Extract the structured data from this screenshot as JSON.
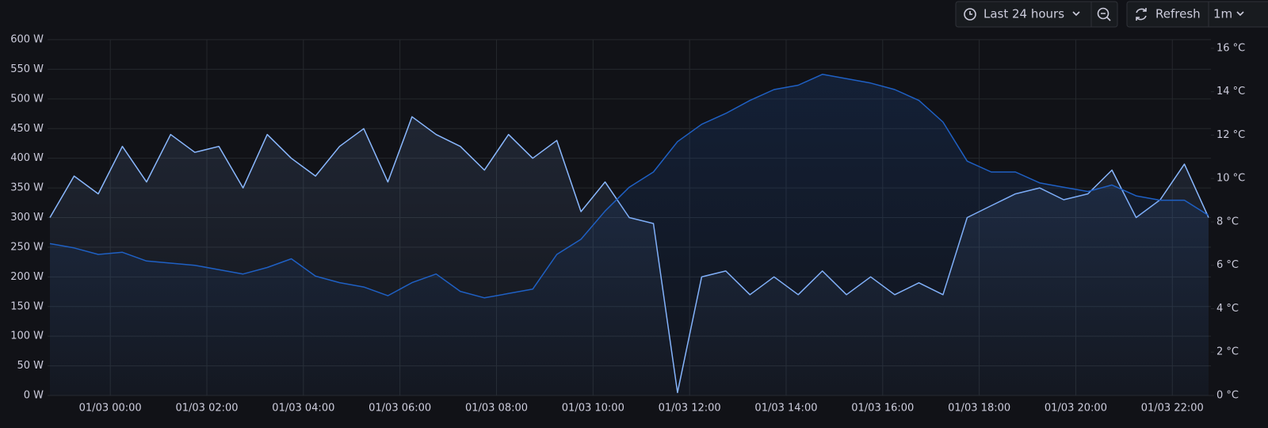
{
  "toolbar": {
    "time_range": "Last 24 hours",
    "refresh": "Refresh",
    "interval": "1m"
  },
  "chart_data": {
    "type": "line",
    "grid": true,
    "fill_area": true,
    "x": [
      -1.25,
      -0.75,
      -0.25,
      0.25,
      0.75,
      1.25,
      1.75,
      2.25,
      2.75,
      3.25,
      3.75,
      4.25,
      4.75,
      5.25,
      5.75,
      6.25,
      6.75,
      7.25,
      7.75,
      8.25,
      8.75,
      9.25,
      9.75,
      10.25,
      10.75,
      11.25,
      11.75,
      12.25,
      12.75,
      13.25,
      13.75,
      14.25,
      14.75,
      15.25,
      15.75,
      16.25,
      16.75,
      17.25,
      17.75,
      18.25,
      18.75,
      19.25,
      19.75,
      20.25,
      20.75,
      21.25,
      21.75,
      22.25,
      22.75
    ],
    "xlim": [
      -1.3,
      22.8
    ],
    "xticks": [
      {
        "value": 0,
        "label": "01/03 00:00"
      },
      {
        "value": 2,
        "label": "01/03 02:00"
      },
      {
        "value": 4,
        "label": "01/03 04:00"
      },
      {
        "value": 6,
        "label": "01/03 06:00"
      },
      {
        "value": 8,
        "label": "01/03 08:00"
      },
      {
        "value": 10,
        "label": "01/03 10:00"
      },
      {
        "value": 12,
        "label": "01/03 12:00"
      },
      {
        "value": 14,
        "label": "01/03 14:00"
      },
      {
        "value": 16,
        "label": "01/03 16:00"
      },
      {
        "value": 18,
        "label": "01/03 18:00"
      },
      {
        "value": 20,
        "label": "01/03 20:00"
      },
      {
        "value": 22,
        "label": "01/03 22:00"
      }
    ],
    "ylim": [
      0,
      600
    ],
    "yticks": [
      {
        "value": 0,
        "label": "0 W"
      },
      {
        "value": 50,
        "label": "50 W"
      },
      {
        "value": 100,
        "label": "100 W"
      },
      {
        "value": 150,
        "label": "150 W"
      },
      {
        "value": 200,
        "label": "200 W"
      },
      {
        "value": 250,
        "label": "250 W"
      },
      {
        "value": 300,
        "label": "300 W"
      },
      {
        "value": 350,
        "label": "350 W"
      },
      {
        "value": 400,
        "label": "400 W"
      },
      {
        "value": 450,
        "label": "450 W"
      },
      {
        "value": 500,
        "label": "500 W"
      },
      {
        "value": 550,
        "label": "550 W"
      },
      {
        "value": 600,
        "label": "600 W"
      }
    ],
    "y2lim": [
      0,
      16.4
    ],
    "y2ticks": [
      {
        "value": 0,
        "label": "0 °C"
      },
      {
        "value": 2,
        "label": "2 °C"
      },
      {
        "value": 4,
        "label": "4 °C"
      },
      {
        "value": 6,
        "label": "6 °C"
      },
      {
        "value": 8,
        "label": "8 °C"
      },
      {
        "value": 10,
        "label": "10 °C"
      },
      {
        "value": 12,
        "label": "12 °C"
      },
      {
        "value": 14,
        "label": "14 °C"
      },
      {
        "value": 16,
        "label": "16 °C"
      }
    ],
    "series": [
      {
        "color": "#8ab8ff",
        "values": [
          300,
          370,
          340,
          420,
          360,
          440,
          410,
          420,
          350,
          440,
          400,
          370,
          420,
          450,
          360,
          470,
          440,
          420,
          380,
          440,
          400,
          430,
          310,
          360,
          300,
          290,
          5,
          200,
          210,
          170,
          200,
          170,
          210,
          170,
          200,
          170,
          190,
          170,
          300,
          320,
          340,
          350,
          330,
          340,
          380,
          300,
          330,
          390,
          300
        ]
      },
      {
        "color": "#1f60c4",
        "axis": "y2",
        "values": [
          7,
          6.8,
          6.5,
          6.6,
          6.2,
          6.1,
          6.0,
          5.8,
          5.6,
          5.9,
          6.3,
          5.5,
          5.2,
          5.0,
          4.6,
          5.2,
          5.6,
          4.8,
          4.5,
          4.7,
          4.9,
          6.5,
          7.2,
          8.5,
          9.6,
          10.3,
          11.7,
          12.5,
          13.0,
          13.6,
          14.1,
          14.3,
          14.8,
          14.6,
          14.4,
          14.1,
          13.6,
          12.6,
          10.8,
          10.3,
          10.3,
          9.8,
          9.6,
          9.4,
          9.7,
          9.2,
          9.0,
          9.0,
          8.3
        ]
      }
    ]
  }
}
